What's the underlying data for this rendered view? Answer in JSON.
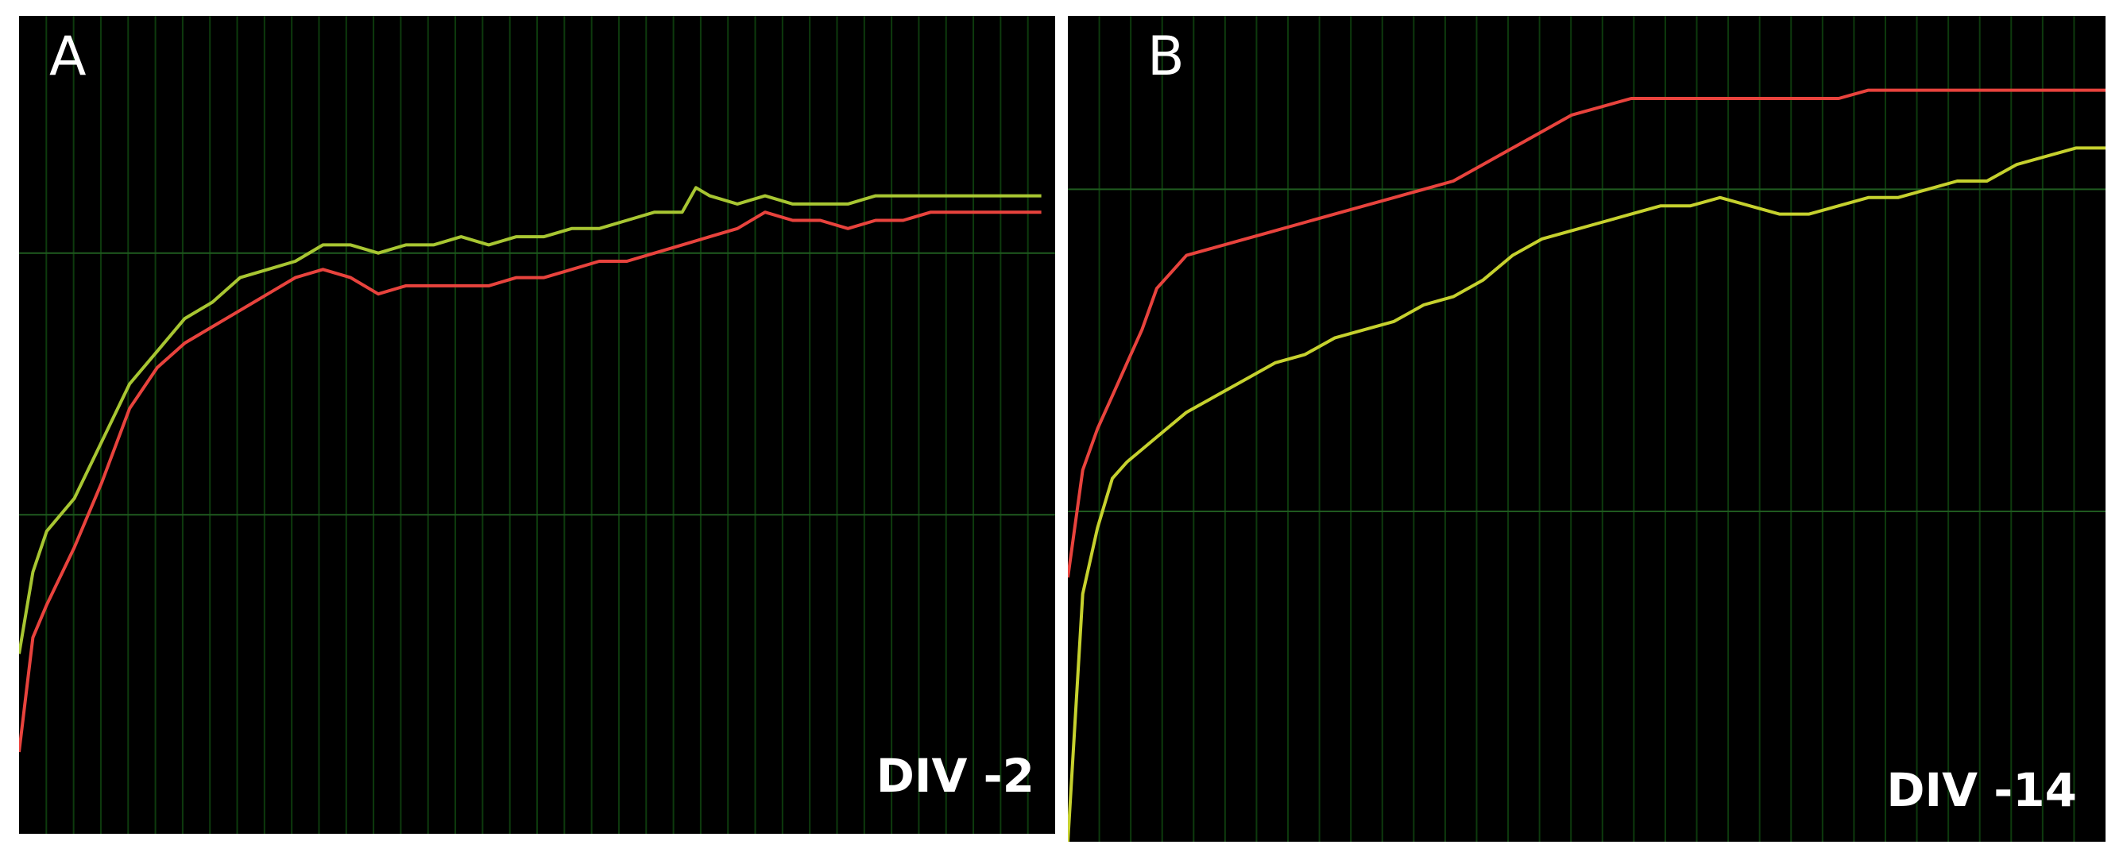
{
  "chart_data": [
    {
      "type": "line",
      "panel_label": "A",
      "caption": "DIV -2",
      "background_color": "#000000",
      "grid": true,
      "grid_color": "#0d3a0d",
      "x_range": [
        0,
        75
      ],
      "y_range": [
        0,
        100
      ],
      "x_grid_lines": 38,
      "y_grid_lines": [
        39,
        71
      ],
      "series": [
        {
          "color": "#e8433d",
          "values": [
            [
              0,
              10
            ],
            [
              1,
              24
            ],
            [
              2,
              28
            ],
            [
              4,
              35
            ],
            [
              6,
              43
            ],
            [
              8,
              52
            ],
            [
              10,
              57
            ],
            [
              12,
              60
            ],
            [
              14,
              62
            ],
            [
              16,
              64
            ],
            [
              18,
              66
            ],
            [
              20,
              68
            ],
            [
              22,
              69
            ],
            [
              24,
              68
            ],
            [
              26,
              66
            ],
            [
              28,
              67
            ],
            [
              30,
              67
            ],
            [
              32,
              67
            ],
            [
              34,
              67
            ],
            [
              36,
              68
            ],
            [
              38,
              68
            ],
            [
              40,
              69
            ],
            [
              42,
              70
            ],
            [
              44,
              70
            ],
            [
              46,
              71
            ],
            [
              48,
              72
            ],
            [
              50,
              73
            ],
            [
              52,
              74
            ],
            [
              54,
              76
            ],
            [
              56,
              75
            ],
            [
              58,
              75
            ],
            [
              60,
              74
            ],
            [
              62,
              75
            ],
            [
              64,
              75
            ],
            [
              66,
              76
            ],
            [
              68,
              76
            ],
            [
              70,
              76
            ],
            [
              72,
              76
            ],
            [
              74,
              76
            ]
          ]
        },
        {
          "color": "#a8c632",
          "values": [
            [
              0,
              22
            ],
            [
              1,
              32
            ],
            [
              2,
              37
            ],
            [
              4,
              41
            ],
            [
              6,
              48
            ],
            [
              8,
              55
            ],
            [
              10,
              59
            ],
            [
              12,
              63
            ],
            [
              14,
              65
            ],
            [
              16,
              68
            ],
            [
              18,
              69
            ],
            [
              20,
              70
            ],
            [
              22,
              72
            ],
            [
              24,
              72
            ],
            [
              26,
              71
            ],
            [
              28,
              72
            ],
            [
              30,
              72
            ],
            [
              32,
              73
            ],
            [
              34,
              72
            ],
            [
              36,
              73
            ],
            [
              38,
              73
            ],
            [
              40,
              74
            ],
            [
              42,
              74
            ],
            [
              44,
              75
            ],
            [
              46,
              76
            ],
            [
              48,
              76
            ],
            [
              49,
              79
            ],
            [
              50,
              78
            ],
            [
              52,
              77
            ],
            [
              54,
              78
            ],
            [
              56,
              77
            ],
            [
              58,
              77
            ],
            [
              60,
              77
            ],
            [
              62,
              78
            ],
            [
              64,
              78
            ],
            [
              66,
              78
            ],
            [
              68,
              78
            ],
            [
              70,
              78
            ],
            [
              72,
              78
            ],
            [
              74,
              78
            ]
          ]
        }
      ]
    },
    {
      "type": "line",
      "panel_label": "B",
      "caption": "DIV -14",
      "background_color": "#000000",
      "grid": true,
      "grid_color": "#0d3a0d",
      "x_range": [
        0,
        70
      ],
      "y_range": [
        0,
        100
      ],
      "x_grid_lines": 33,
      "y_grid_lines": [
        40,
        79
      ],
      "series": [
        {
          "color": "#e8433d",
          "values": [
            [
              0,
              32
            ],
            [
              1,
              45
            ],
            [
              2,
              50
            ],
            [
              3,
              54
            ],
            [
              4,
              58
            ],
            [
              5,
              62
            ],
            [
              6,
              67
            ],
            [
              7,
              69
            ],
            [
              8,
              71
            ],
            [
              10,
              72
            ],
            [
              12,
              73
            ],
            [
              14,
              74
            ],
            [
              16,
              75
            ],
            [
              18,
              76
            ],
            [
              20,
              77
            ],
            [
              22,
              78
            ],
            [
              24,
              79
            ],
            [
              26,
              80
            ],
            [
              28,
              82
            ],
            [
              30,
              84
            ],
            [
              32,
              86
            ],
            [
              34,
              88
            ],
            [
              36,
              89
            ],
            [
              38,
              90
            ],
            [
              40,
              90
            ],
            [
              42,
              90
            ],
            [
              44,
              90
            ],
            [
              46,
              90
            ],
            [
              48,
              90
            ],
            [
              50,
              90
            ],
            [
              52,
              90
            ],
            [
              54,
              91
            ],
            [
              56,
              91
            ],
            [
              58,
              91
            ],
            [
              60,
              91
            ],
            [
              62,
              91
            ],
            [
              64,
              91
            ],
            [
              66,
              91
            ],
            [
              68,
              91
            ],
            [
              70,
              91
            ]
          ]
        },
        {
          "color": "#c6d12e",
          "values": [
            [
              0,
              0
            ],
            [
              1,
              30
            ],
            [
              2,
              38
            ],
            [
              3,
              44
            ],
            [
              4,
              46
            ],
            [
              6,
              49
            ],
            [
              8,
              52
            ],
            [
              10,
              54
            ],
            [
              12,
              56
            ],
            [
              14,
              58
            ],
            [
              16,
              59
            ],
            [
              18,
              61
            ],
            [
              20,
              62
            ],
            [
              22,
              63
            ],
            [
              24,
              65
            ],
            [
              26,
              66
            ],
            [
              28,
              68
            ],
            [
              30,
              71
            ],
            [
              32,
              73
            ],
            [
              34,
              74
            ],
            [
              36,
              75
            ],
            [
              38,
              76
            ],
            [
              40,
              77
            ],
            [
              42,
              77
            ],
            [
              44,
              78
            ],
            [
              46,
              77
            ],
            [
              48,
              76
            ],
            [
              50,
              76
            ],
            [
              52,
              77
            ],
            [
              54,
              78
            ],
            [
              56,
              78
            ],
            [
              58,
              79
            ],
            [
              60,
              80
            ],
            [
              62,
              80
            ],
            [
              64,
              82
            ],
            [
              66,
              83
            ],
            [
              68,
              84
            ],
            [
              70,
              84
            ]
          ]
        }
      ]
    }
  ]
}
